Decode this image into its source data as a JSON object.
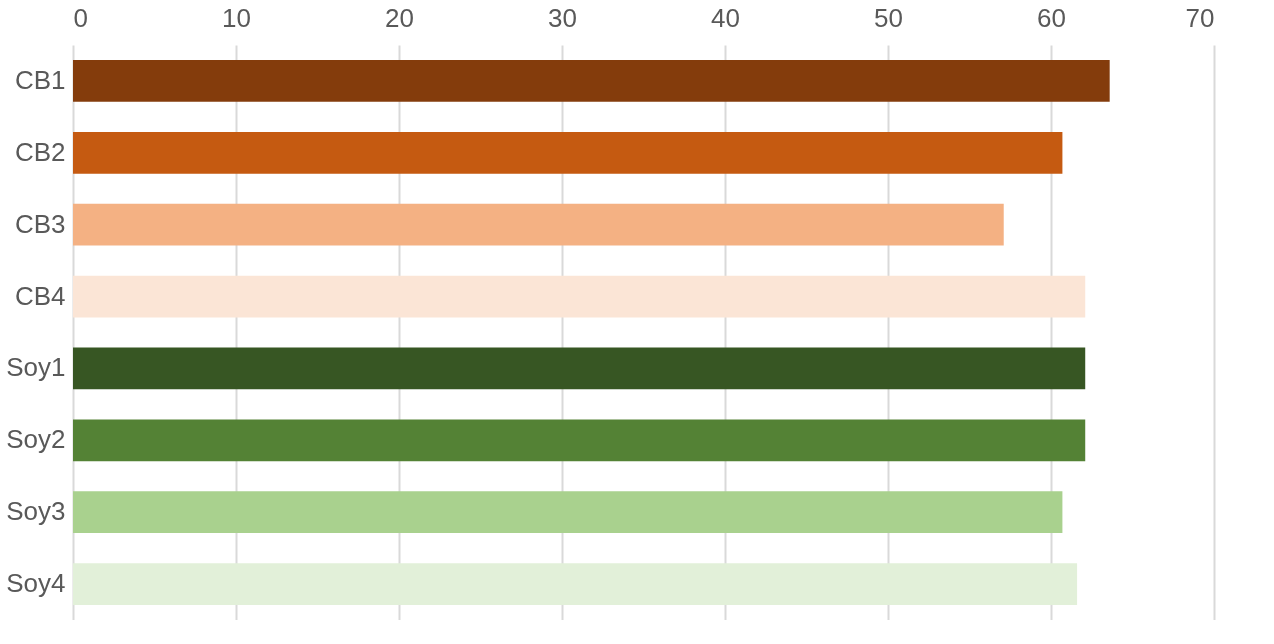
{
  "chart_data": {
    "type": "bar",
    "orientation": "horizontal",
    "categories": [
      "CB1",
      "CB2",
      "CB3",
      "CB4",
      "Soy1",
      "Soy2",
      "Soy3",
      "Soy4"
    ],
    "values": [
      63.6,
      60.7,
      57.1,
      62.1,
      62.1,
      62.1,
      60.7,
      61.6
    ],
    "colors": [
      "#843c0c",
      "#c55a11",
      "#f4b183",
      "#fbe5d6",
      "#375623",
      "#548235",
      "#a9d18e",
      "#e2f0d9"
    ],
    "xlim": [
      0,
      70
    ],
    "xticks": [
      0,
      10,
      20,
      30,
      40,
      50,
      60,
      70
    ],
    "grid": "x",
    "legend": false
  }
}
